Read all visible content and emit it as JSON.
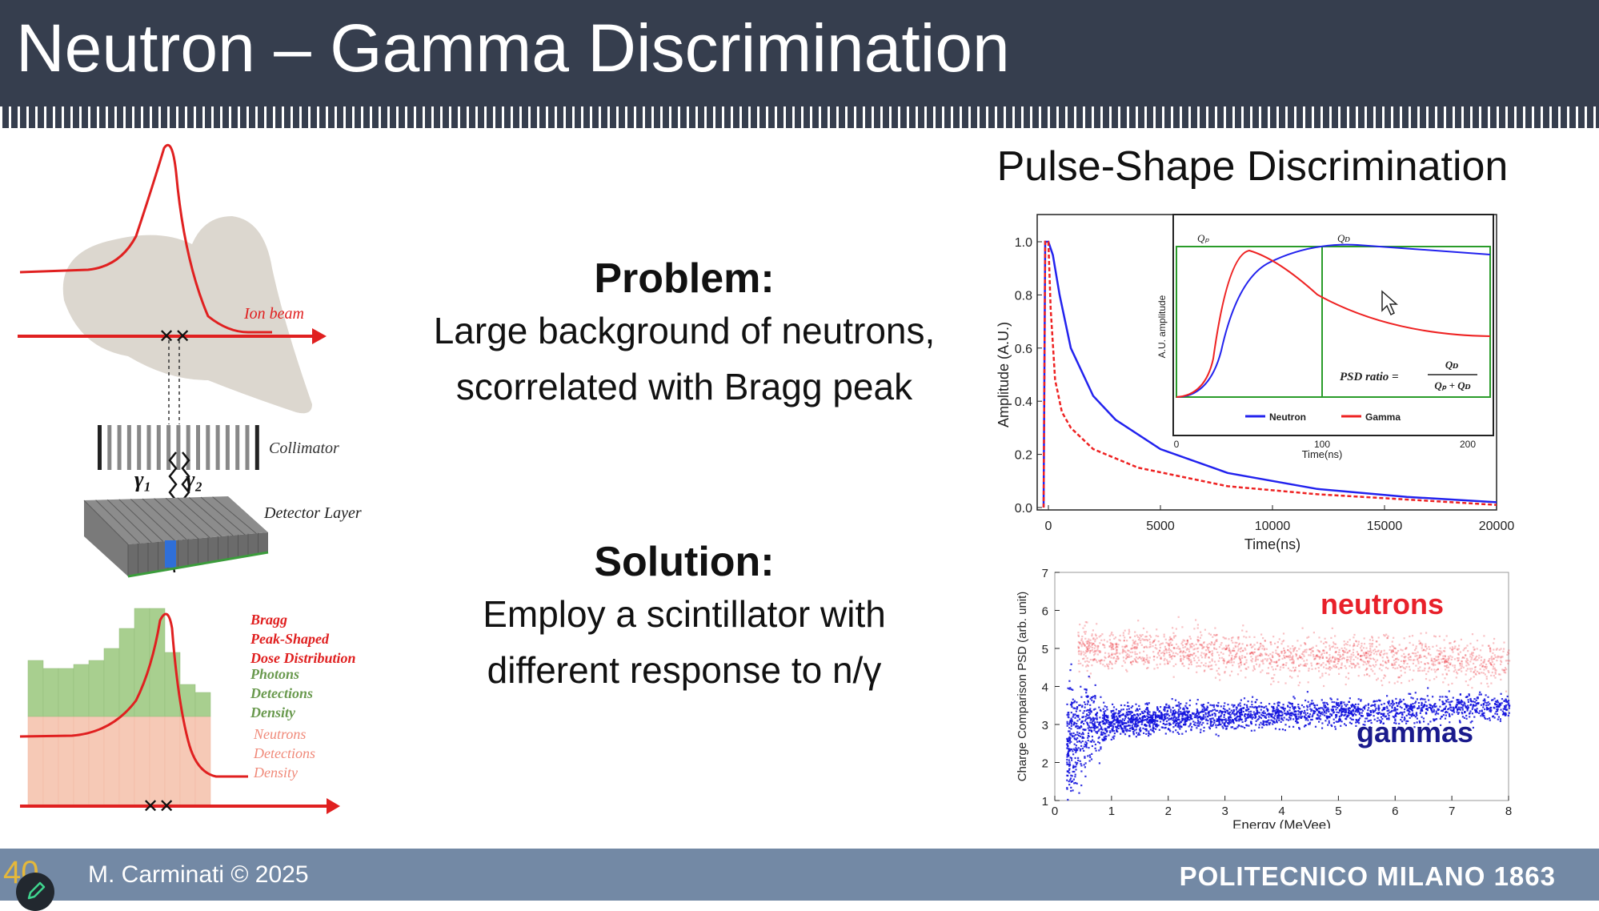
{
  "slide": {
    "title": "Neutron – Gamma Discrimination",
    "slide_number": "40",
    "author": "M. Carminati © 2025",
    "logo_text": "POLITECNICO MILANO 1863"
  },
  "illustration": {
    "ion_beam_label": "Ion beam",
    "collimator_label": "Collimator",
    "detector_label": "Detector Layer",
    "gamma1_label": "γ₁",
    "gamma2_label": "γ₂",
    "legend": {
      "bragg": [
        "Bragg",
        "Peak-Shaped",
        "Dose Distribution"
      ],
      "photons": [
        "Photons",
        "Detections",
        "Density"
      ],
      "neutrons": [
        "Neutrons",
        "Detections",
        "Density"
      ]
    },
    "colors": {
      "beam": "#e02020",
      "photons": "#a8cf8f",
      "neutrons": "#f6c9b6",
      "pixel_hit": "#2f6fd8"
    }
  },
  "problem": {
    "heading": "Problem:",
    "lines": [
      "Large background of neutrons,",
      "scorrelated with Bragg peak"
    ]
  },
  "solution": {
    "heading": "Solution:",
    "lines": [
      "Employ a scintillator with",
      "different response to n/γ"
    ]
  },
  "psd_title": "Pulse-Shape Discrimination",
  "chart_data": [
    {
      "type": "line",
      "xlabel": "Time(ns)",
      "ylabel": "Amplitude (A.U.)",
      "xlim": [
        0,
        20000
      ],
      "ylim": [
        0,
        1.0
      ],
      "x_ticks": [
        "0",
        "5000",
        "10000",
        "15000",
        "20000"
      ],
      "y_ticks": [
        "0.0",
        "0.2",
        "0.4",
        "0.6",
        "0.8",
        "1.0"
      ],
      "series": [
        {
          "name": "Neutron",
          "color": "#2222ee",
          "x": [
            0,
            200,
            500,
            1000,
            2000,
            3000,
            5000,
            8000,
            12000,
            16000,
            20000
          ],
          "y": [
            1.0,
            0.95,
            0.8,
            0.6,
            0.42,
            0.33,
            0.22,
            0.13,
            0.07,
            0.04,
            0.02
          ]
        },
        {
          "name": "Gamma",
          "color": "#ee2222",
          "x": [
            0,
            100,
            300,
            600,
            1000,
            2000,
            4000,
            8000,
            12000,
            16000,
            20000
          ],
          "y": [
            1.0,
            0.75,
            0.48,
            0.36,
            0.3,
            0.22,
            0.15,
            0.08,
            0.05,
            0.03,
            0.01
          ]
        }
      ],
      "inset": {
        "xlabel": "Time(ns)",
        "ylabel": "A.U. amplitude",
        "x_ticks": [
          "0",
          "100",
          "200"
        ],
        "labels": [
          "Qₚ",
          "Qᴅ"
        ],
        "legend": [
          "Neutron",
          "Gamma"
        ],
        "formula_lhs": "PSD ratio =",
        "formula_num": "Qᴅ",
        "formula_den": "Qₚ + Qᴅ"
      }
    },
    {
      "type": "scatter",
      "xlabel": "Energy (MeVee)",
      "ylabel": "Charge Comparison PSD (arb. unit)",
      "xlim": [
        0,
        8
      ],
      "ylim": [
        1,
        7
      ],
      "x_ticks": [
        "0",
        "1",
        "2",
        "3",
        "4",
        "5",
        "6",
        "7",
        "8"
      ],
      "y_ticks": [
        "1",
        "2",
        "3",
        "4",
        "5",
        "6",
        "7"
      ],
      "series": [
        {
          "name": "neutrons",
          "color": "#e8202a",
          "band_center": [
            [
              0.4,
              5.0
            ],
            [
              2,
              5.0
            ],
            [
              4,
              4.8
            ],
            [
              6,
              4.8
            ],
            [
              8,
              4.6
            ]
          ],
          "spread": 0.45
        },
        {
          "name": "gammas",
          "color": "#1010dd",
          "band_center": [
            [
              0.2,
              2.5
            ],
            [
              0.6,
              3.0
            ],
            [
              2,
              3.2
            ],
            [
              4,
              3.3
            ],
            [
              6,
              3.4
            ],
            [
              8,
              3.5
            ]
          ],
          "spread": 0.3
        }
      ]
    }
  ]
}
